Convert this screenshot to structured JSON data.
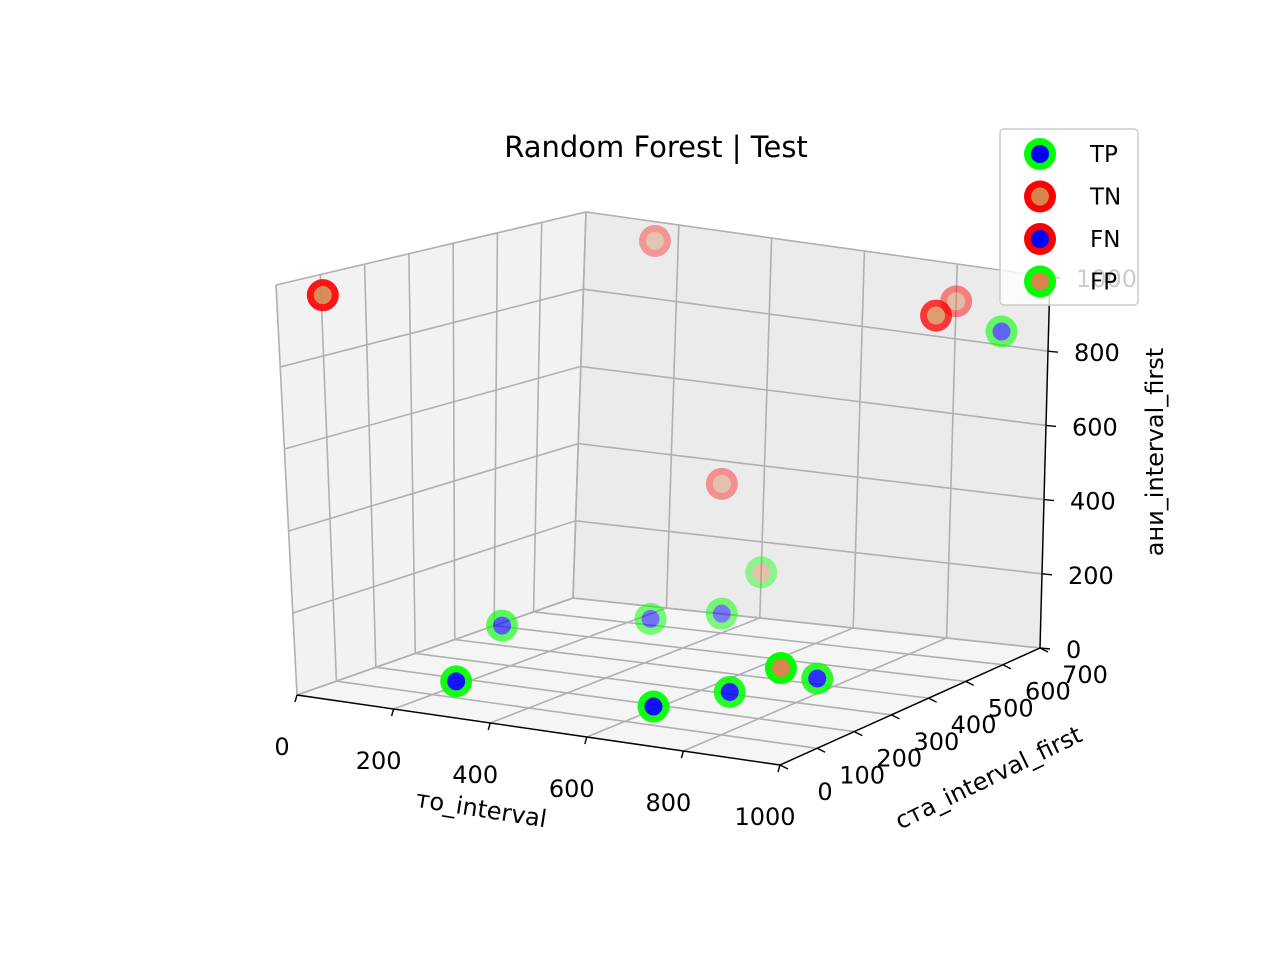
{
  "chart_data": {
    "type": "scatter3d",
    "title": "Random Forest | Test",
    "xlabel": "то_interval",
    "ylabel": "ста_interval_first",
    "zlabel": "ани_interval_first",
    "xlim": [
      0,
      1000
    ],
    "ylim": [
      0,
      700
    ],
    "zlim": [
      0,
      1000
    ],
    "xticks": [
      "0",
      "200",
      "400",
      "600",
      "800",
      "1000"
    ],
    "yticks": [
      "0",
      "100",
      "200",
      "300",
      "400",
      "500",
      "600",
      "700"
    ],
    "zticks": [
      "0",
      "200",
      "400",
      "600",
      "800",
      "1000"
    ],
    "grid": true,
    "legend_position": "top-right",
    "legend": [
      {
        "label": "TP",
        "edge": "#00ff00",
        "face": "#0000ff"
      },
      {
        "label": "TN",
        "edge": "#ff0000",
        "face": "#d9844a"
      },
      {
        "label": "FN",
        "edge": "#ff0000",
        "face": "#0000ff"
      },
      {
        "label": "FP",
        "edge": "#00ff00",
        "face": "#d9844a"
      }
    ],
    "series": [
      {
        "name": "TP",
        "points": [
          {
            "x": 250,
            "y": 100,
            "z": 40
          },
          {
            "x": 620,
            "y": 150,
            "z": 20
          },
          {
            "x": 700,
            "y": 250,
            "z": 30
          },
          {
            "x": 820,
            "y": 330,
            "z": 50
          },
          {
            "x": 100,
            "y": 400,
            "z": 50
          },
          {
            "x": 290,
            "y": 550,
            "z": 40
          },
          {
            "x": 400,
            "y": 600,
            "z": 50
          },
          {
            "x": 980,
            "y": 600,
            "z": 870
          }
        ]
      },
      {
        "name": "TN",
        "points": [
          {
            "x": 30,
            "y": 70,
            "z": 960
          },
          {
            "x": 150,
            "y": 700,
            "z": 950
          },
          {
            "x": 800,
            "y": 700,
            "z": 900
          },
          {
            "x": 1000,
            "y": 400,
            "z": 950
          },
          {
            "x": 310,
            "y": 700,
            "z": 340
          }
        ]
      },
      {
        "name": "FN",
        "points": []
      },
      {
        "name": "FP",
        "points": [
          {
            "x": 900,
            "y": 130,
            "z": 160
          },
          {
            "x": 400,
            "y": 700,
            "z": 120
          }
        ]
      }
    ]
  }
}
